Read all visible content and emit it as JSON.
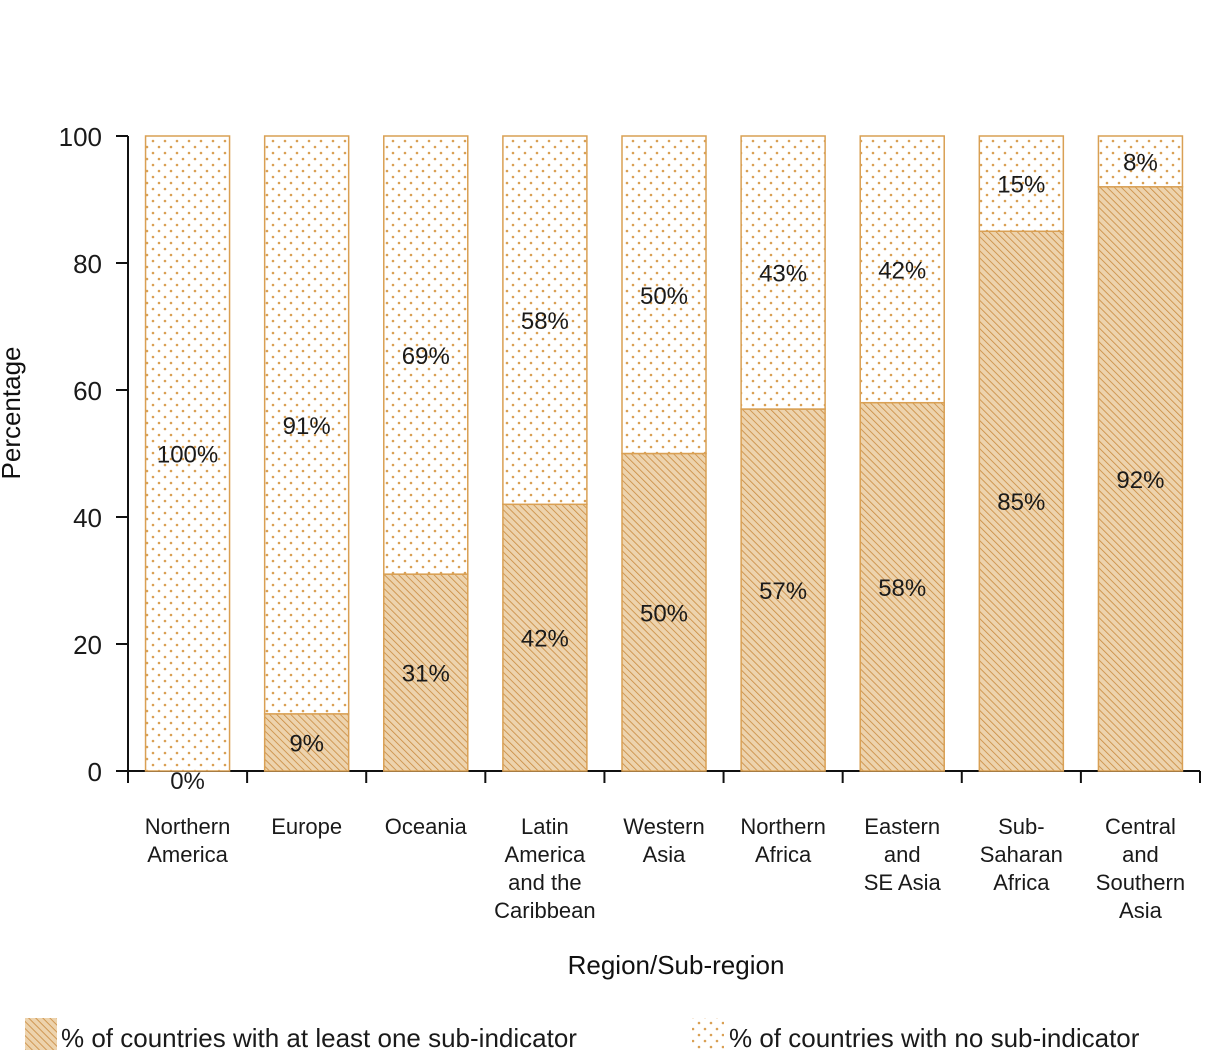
{
  "chart_data": {
    "type": "bar",
    "stacked": true,
    "xlabel": "Region/Sub-region",
    "ylabel": "Percentage",
    "ylim": [
      0,
      100
    ],
    "yticks": [
      0,
      20,
      40,
      60,
      80,
      100
    ],
    "categories": [
      [
        "Northern",
        "America"
      ],
      [
        "Europe"
      ],
      [
        "Oceania"
      ],
      [
        "Latin",
        "America",
        "and the",
        "Caribbean"
      ],
      [
        "Western",
        "Asia"
      ],
      [
        "Northern",
        "Africa"
      ],
      [
        "Eastern",
        "and",
        "SE Asia"
      ],
      [
        "Sub-",
        "Saharan",
        "Africa"
      ],
      [
        "Central",
        "and",
        "Southern",
        "Asia"
      ]
    ],
    "series": [
      {
        "name": "% of countries with at least one sub-indicator",
        "values": [
          0,
          9,
          31,
          42,
          50,
          57,
          58,
          85,
          92
        ],
        "labels": [
          "0%",
          "9%",
          "31%",
          "42%",
          "50%",
          "57%",
          "58%",
          "85%",
          "92%"
        ],
        "pattern": "hatch"
      },
      {
        "name": "% of countries with no sub-indicator",
        "values": [
          100,
          91,
          69,
          58,
          50,
          43,
          42,
          15,
          8
        ],
        "labels": [
          "100%",
          "91%",
          "69%",
          "58%",
          "50%",
          "43%",
          "42%",
          "15%",
          "8%"
        ],
        "pattern": "dots"
      }
    ],
    "grid": false,
    "legend_position": "bottom",
    "colors": {
      "accent": "#d9a054",
      "fill_solid": "#e8c08a",
      "text": "#1a1a1a"
    }
  }
}
